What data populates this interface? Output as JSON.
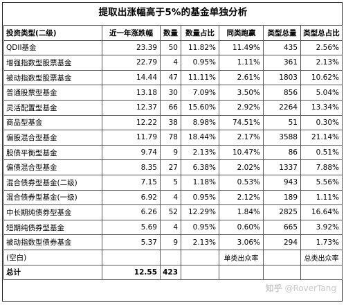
{
  "title": "提取出涨幅高于5%的基金单独分析",
  "headers": [
    "投资类型(二级)",
    "近一年涨跌幅",
    "数量",
    "数量占比",
    "同类跑赢",
    "类型总量",
    "类型总占比"
  ],
  "rows": [
    [
      "QDII基金",
      "23.39",
      "50",
      "11.82%",
      "11.49%",
      "435",
      "2.56%"
    ],
    [
      "增强指数型股票基金",
      "22.79",
      "4",
      "0.95%",
      "1.11%",
      "361",
      "2.13%"
    ],
    [
      "被动指数型股票基金",
      "14.44",
      "47",
      "11.11%",
      "2.61%",
      "1803",
      "10.62%"
    ],
    [
      "普通股票型基金",
      "13.18",
      "30",
      "7.09%",
      "3.50%",
      "856",
      "5.04%"
    ],
    [
      "灵活配置型基金",
      "12.37",
      "66",
      "15.60%",
      "2.92%",
      "2264",
      "13.34%"
    ],
    [
      "商品型基金",
      "12.22",
      "38",
      "8.98%",
      "74.51%",
      "51",
      "0.30%"
    ],
    [
      "偏股混合型基金",
      "11.79",
      "78",
      "18.44%",
      "2.17%",
      "3588",
      "21.14%"
    ],
    [
      "股债平衡型基金",
      "9.74",
      "9",
      "2.13%",
      "10.47%",
      "86",
      "0.51%"
    ],
    [
      "偏债混合型基金",
      "8.35",
      "27",
      "6.38%",
      "2.02%",
      "1337",
      "7.88%"
    ],
    [
      "混合债券型基金(二级)",
      "7.15",
      "5",
      "1.18%",
      "0.53%",
      "943",
      "5.56%"
    ],
    [
      "混合债券型基金(一级)",
      "6.92",
      "4",
      "0.95%",
      "2.12%",
      "189",
      "1.11%"
    ],
    [
      "中长期纯债券型基金",
      "6.26",
      "52",
      "12.29%",
      "1.84%",
      "2825",
      "16.64%"
    ],
    [
      "短期纯债券型基金",
      "5.69",
      "4",
      "0.95%",
      "0.60%",
      "665",
      "3.92%"
    ],
    [
      "被动指数型债券基金",
      "5.37",
      "9",
      "2.13%",
      "3.06%",
      "294",
      "1.73%"
    ]
  ],
  "blank_row": {
    "label": "(空白)",
    "note_left": "单类出众率",
    "note_right": "总类出众率"
  },
  "total_row": {
    "label": "总计",
    "change": "12.55",
    "count": "423"
  },
  "watermark": {
    "logo": "知乎",
    "handle": "@RoverTang"
  }
}
